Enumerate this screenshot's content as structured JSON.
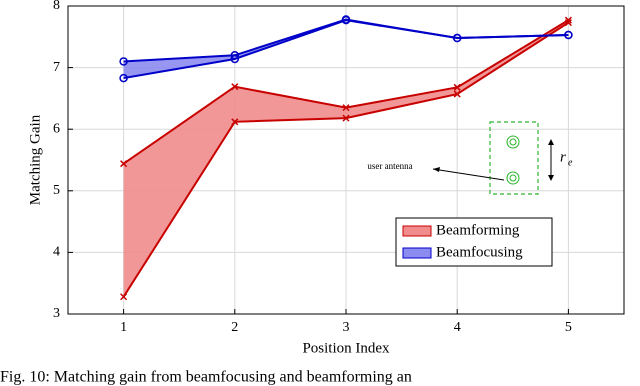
{
  "chart_data": {
    "type": "band",
    "x_label": "Position Index",
    "y_label": "Matching Gain",
    "x": [
      1,
      2,
      3,
      4,
      5
    ],
    "series": [
      {
        "name": "Beamforming",
        "color": "#c80000",
        "fill": "#f08c8c",
        "marker": "x",
        "values": [
          5.44,
          6.69,
          6.35,
          6.68,
          7.77
        ],
        "lower": [
          3.28,
          6.12,
          6.18,
          6.57,
          7.73
        ]
      },
      {
        "name": "Beamfocusing",
        "color": "#0000c8",
        "fill": "#8c8cf0",
        "marker": "o",
        "values": [
          7.1,
          7.2,
          7.78,
          7.48,
          7.53
        ],
        "lower": [
          6.83,
          7.14,
          7.77,
          7.48,
          7.53
        ]
      }
    ],
    "xlim": [
      0.5,
      5.5
    ],
    "xticks": [
      1,
      2,
      3,
      4,
      5
    ],
    "ylim": [
      3,
      8
    ],
    "yticks": [
      3,
      4,
      5,
      6,
      7,
      8
    ],
    "grid": true,
    "legend": "lower-right",
    "annotations": {
      "antenna": "user antenna",
      "radius": "r",
      "radius_subscript": "e"
    },
    "caption": "Fig. 10: Matching gain from beamfocusing and beamforming an"
  }
}
